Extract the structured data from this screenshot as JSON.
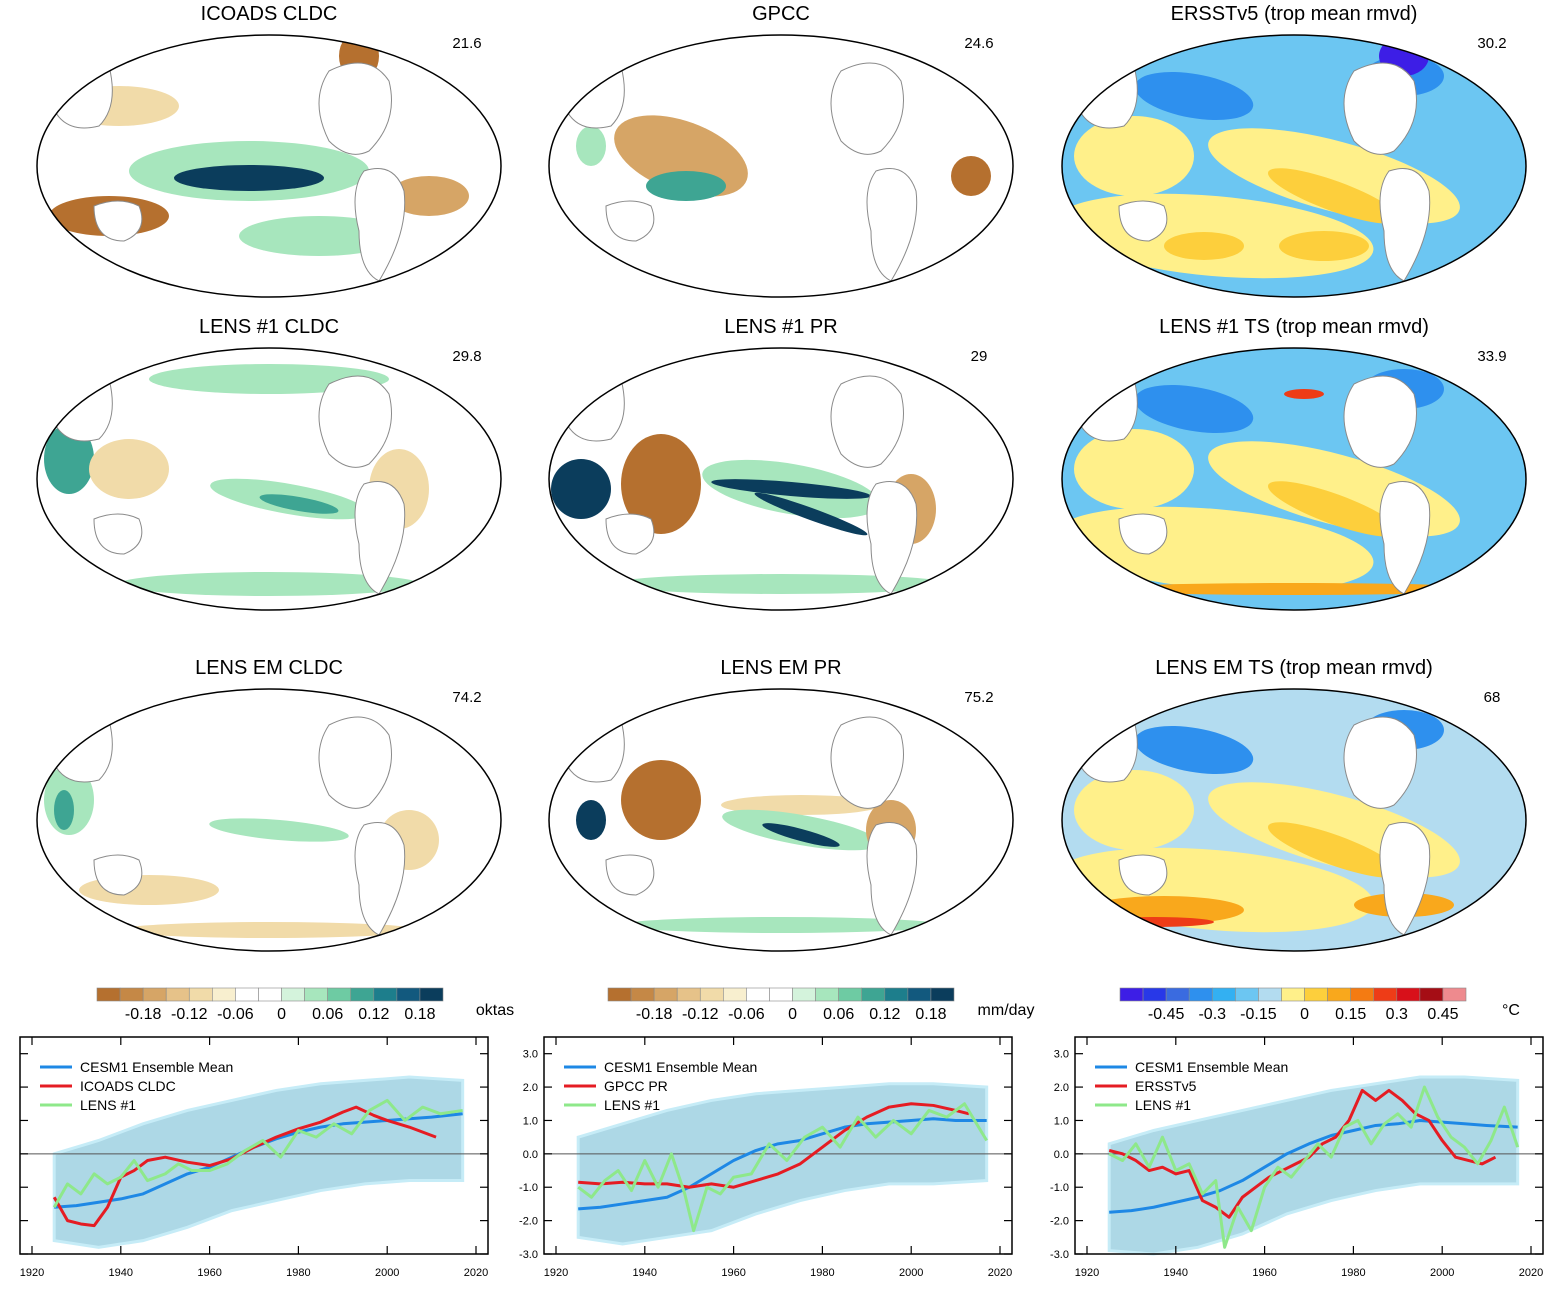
{
  "maps": [
    {
      "title": "ICOADS CLDC",
      "value": "21.6",
      "row": 0,
      "col": 0,
      "pattern": "obs-cld"
    },
    {
      "title": "GPCC",
      "value": "24.6",
      "row": 0,
      "col": 1,
      "pattern": "obs-pr"
    },
    {
      "title": "ERSSTv5 (trop mean rmvd)",
      "value": "30.2",
      "row": 0,
      "col": 2,
      "pattern": "obs-sst"
    },
    {
      "title": "LENS #1 CLDC",
      "value": "29.8",
      "row": 1,
      "col": 0,
      "pattern": "lens-cld"
    },
    {
      "title": "LENS #1 PR",
      "value": "29",
      "row": 1,
      "col": 1,
      "pattern": "lens-pr"
    },
    {
      "title": "LENS #1 TS (trop mean rmvd)",
      "value": "33.9",
      "row": 1,
      "col": 2,
      "pattern": "lens-ts"
    },
    {
      "title": "LENS EM CLDC",
      "value": "74.2",
      "row": 2,
      "col": 0,
      "pattern": "em-cld"
    },
    {
      "title": "LENS EM PR",
      "value": "75.2",
      "row": 2,
      "col": 1,
      "pattern": "em-pr"
    },
    {
      "title": "LENS EM TS (trop mean rmvd)",
      "value": "68",
      "row": 2,
      "col": 2,
      "pattern": "em-ts"
    }
  ],
  "colorbars": [
    {
      "unit": "oktas",
      "labels": [
        "-0.18",
        "-0.12",
        "-0.06",
        "0",
        "0.06",
        "0.12",
        "0.18"
      ],
      "colors": [
        "#b5702f",
        "#c58846",
        "#d6a566",
        "#e6c289",
        "#f1dba9",
        "#f8efcf",
        "#ffffff",
        "#ffffff",
        "#d4f3dc",
        "#a7e6bd",
        "#6ecba3",
        "#3ea593",
        "#1d7e8c",
        "#12597e",
        "#0b3d5c"
      ]
    },
    {
      "unit": "mm/day",
      "labels": [
        "-0.18",
        "-0.12",
        "-0.06",
        "0",
        "0.06",
        "0.12",
        "0.18"
      ],
      "colors": [
        "#b5702f",
        "#c58846",
        "#d6a566",
        "#e6c289",
        "#f1dba9",
        "#f8efcf",
        "#ffffff",
        "#ffffff",
        "#d4f3dc",
        "#a7e6bd",
        "#6ecba3",
        "#3ea593",
        "#1d7e8c",
        "#12597e",
        "#0b3d5c"
      ]
    },
    {
      "unit": "°C",
      "labels": [
        "-0.45",
        "-0.3",
        "-0.15",
        "0",
        "0.15",
        "0.3",
        "0.45"
      ],
      "colors": [
        "#3d1ee6",
        "#2838e8",
        "#3a6be0",
        "#2e90ee",
        "#33b0f2",
        "#6cc6f2",
        "#b3dcf0",
        "#fff08a",
        "#fdcf3c",
        "#f9a81c",
        "#f47b12",
        "#ee3c17",
        "#d8101a",
        "#a50d15",
        "#ee8a8e"
      ]
    }
  ],
  "chart_data": [
    {
      "type": "line",
      "xlim": [
        1920,
        2020
      ],
      "ylim": [
        -3,
        3.5
      ],
      "x_ticks": [
        "1920",
        "1940",
        "1960",
        "1980",
        "2000",
        "2020"
      ],
      "y_ticks": [
        "-3.0",
        "-2.0",
        "-1.0",
        "0.0",
        "1.0",
        "2.0",
        "3.0"
      ],
      "show_y_labels": false,
      "band": {
        "x": [
          1925,
          1935,
          1945,
          1955,
          1965,
          1975,
          1985,
          1995,
          2005,
          2017
        ],
        "lower": [
          -2.6,
          -2.8,
          -2.6,
          -2.2,
          -1.7,
          -1.4,
          -1.1,
          -0.9,
          -0.8,
          -0.8
        ],
        "upper": [
          0.0,
          0.4,
          0.9,
          1.3,
          1.6,
          1.9,
          2.1,
          2.2,
          2.3,
          2.2
        ]
      },
      "series": [
        {
          "name": "CESM1 Ensemble Mean",
          "color": "#1e88e5",
          "x": [
            1925,
            1930,
            1935,
            1940,
            1945,
            1950,
            1955,
            1960,
            1965,
            1970,
            1975,
            1980,
            1985,
            1990,
            1995,
            2000,
            2005,
            2010,
            2017
          ],
          "y": [
            -1.6,
            -1.55,
            -1.45,
            -1.35,
            -1.2,
            -0.9,
            -0.6,
            -0.4,
            -0.1,
            0.2,
            0.45,
            0.65,
            0.8,
            0.9,
            0.95,
            1.0,
            1.05,
            1.1,
            1.2
          ]
        },
        {
          "name": "ICOADS CLDC",
          "color": "#e51c23",
          "x": [
            1925,
            1928,
            1931,
            1934,
            1937,
            1940,
            1943,
            1946,
            1950,
            1955,
            1960,
            1965,
            1970,
            1975,
            1980,
            1985,
            1990,
            1993,
            1997,
            2000,
            2005,
            2011
          ],
          "y": [
            -1.3,
            -2.0,
            -2.1,
            -2.15,
            -1.6,
            -0.7,
            -0.5,
            -0.2,
            -0.1,
            -0.25,
            -0.35,
            -0.15,
            0.2,
            0.5,
            0.75,
            0.95,
            1.25,
            1.4,
            1.15,
            1.0,
            0.8,
            0.5
          ]
        },
        {
          "name": "LENS #1",
          "color": "#8ee88a",
          "x": [
            1925,
            1928,
            1931,
            1934,
            1937,
            1940,
            1943,
            1946,
            1950,
            1953,
            1956,
            1960,
            1964,
            1968,
            1972,
            1976,
            1980,
            1984,
            1988,
            1992,
            1996,
            2000,
            2004,
            2008,
            2012,
            2017
          ],
          "y": [
            -1.6,
            -0.9,
            -1.2,
            -0.6,
            -0.9,
            -0.7,
            -0.2,
            -0.8,
            -0.6,
            -0.3,
            -0.5,
            -0.5,
            -0.3,
            0.1,
            0.4,
            -0.1,
            0.7,
            0.5,
            0.9,
            0.6,
            1.3,
            1.6,
            1.0,
            1.4,
            1.2,
            1.3
          ]
        }
      ]
    },
    {
      "type": "line",
      "xlim": [
        1920,
        2020
      ],
      "ylim": [
        -3,
        3.5
      ],
      "x_ticks": [
        "1920",
        "1940",
        "1960",
        "1980",
        "2000",
        "2020"
      ],
      "y_ticks": [
        "-3.0",
        "-2.0",
        "-1.0",
        "0.0",
        "1.0",
        "2.0",
        "3.0"
      ],
      "show_y_labels": true,
      "band": {
        "x": [
          1925,
          1935,
          1945,
          1955,
          1965,
          1975,
          1985,
          1995,
          2005,
          2017
        ],
        "lower": [
          -2.5,
          -2.7,
          -2.5,
          -2.3,
          -1.8,
          -1.4,
          -1.1,
          -0.9,
          -0.9,
          -0.8
        ],
        "upper": [
          0.5,
          0.9,
          1.3,
          1.6,
          1.8,
          1.9,
          2.0,
          2.1,
          2.1,
          2.0
        ]
      },
      "series": [
        {
          "name": "CESM1 Ensemble Mean",
          "color": "#1e88e5",
          "x": [
            1925,
            1930,
            1935,
            1940,
            1945,
            1950,
            1955,
            1960,
            1965,
            1970,
            1975,
            1980,
            1985,
            1990,
            1995,
            2000,
            2005,
            2010,
            2017
          ],
          "y": [
            -1.65,
            -1.6,
            -1.5,
            -1.4,
            -1.3,
            -1.0,
            -0.6,
            -0.2,
            0.1,
            0.3,
            0.4,
            0.6,
            0.8,
            0.9,
            0.95,
            1.0,
            1.05,
            1.0,
            1.0
          ]
        },
        {
          "name": "GPCC PR",
          "color": "#e51c23",
          "x": [
            1925,
            1930,
            1935,
            1940,
            1945,
            1950,
            1955,
            1960,
            1965,
            1970,
            1975,
            1980,
            1985,
            1990,
            1995,
            2000,
            2005,
            2010,
            2013
          ],
          "y": [
            -0.85,
            -0.9,
            -0.85,
            -0.9,
            -0.9,
            -1.0,
            -0.9,
            -1.0,
            -0.8,
            -0.6,
            -0.3,
            0.2,
            0.7,
            1.1,
            1.4,
            1.5,
            1.45,
            1.3,
            1.2
          ]
        },
        {
          "name": "LENS #1",
          "color": "#8ee88a",
          "x": [
            1925,
            1928,
            1931,
            1934,
            1937,
            1940,
            1943,
            1946,
            1949,
            1951,
            1954,
            1957,
            1960,
            1964,
            1968,
            1972,
            1976,
            1980,
            1984,
            1988,
            1992,
            1996,
            2000,
            2004,
            2008,
            2012,
            2017
          ],
          "y": [
            -1.0,
            -1.3,
            -0.8,
            -0.5,
            -1.1,
            -0.2,
            -1.0,
            0.0,
            -1.2,
            -2.3,
            -1.0,
            -1.2,
            -0.7,
            -0.6,
            0.3,
            -0.2,
            0.5,
            0.8,
            0.2,
            1.1,
            0.5,
            1.0,
            0.6,
            1.3,
            1.1,
            1.5,
            0.4
          ]
        }
      ]
    },
    {
      "type": "line",
      "xlim": [
        1920,
        2020
      ],
      "ylim": [
        -3,
        3.5
      ],
      "x_ticks": [
        "1920",
        "1940",
        "1960",
        "1980",
        "2000",
        "2020"
      ],
      "y_ticks": [
        "-3.0",
        "-2.0",
        "-1.0",
        "0.0",
        "1.0",
        "2.0",
        "3.0"
      ],
      "show_y_labels": true,
      "band": {
        "x": [
          1925,
          1935,
          1945,
          1955,
          1965,
          1975,
          1985,
          1995,
          2005,
          2017
        ],
        "lower": [
          -2.9,
          -3.0,
          -2.8,
          -2.4,
          -1.8,
          -1.4,
          -1.1,
          -0.9,
          -0.9,
          -0.9
        ],
        "upper": [
          0.3,
          0.7,
          1.0,
          1.3,
          1.6,
          1.9,
          2.1,
          2.3,
          2.3,
          2.2
        ]
      },
      "series": [
        {
          "name": "CESM1 Ensemble Mean",
          "color": "#1e88e5",
          "x": [
            1925,
            1930,
            1935,
            1940,
            1945,
            1950,
            1955,
            1960,
            1965,
            1970,
            1975,
            1980,
            1985,
            1990,
            1995,
            2000,
            2005,
            2010,
            2017
          ],
          "y": [
            -1.75,
            -1.7,
            -1.6,
            -1.45,
            -1.3,
            -1.1,
            -0.8,
            -0.4,
            0.0,
            0.3,
            0.55,
            0.7,
            0.85,
            0.9,
            1.0,
            0.95,
            0.9,
            0.85,
            0.8
          ]
        },
        {
          "name": "ERSSTv5",
          "color": "#e51c23",
          "x": [
            1925,
            1928,
            1931,
            1934,
            1937,
            1940,
            1943,
            1946,
            1949,
            1952,
            1955,
            1958,
            1961,
            1964,
            1967,
            1970,
            1973,
            1976,
            1979,
            1982,
            1985,
            1988,
            1991,
            1994,
            1997,
            2000,
            2003,
            2006,
            2009,
            2012
          ],
          "y": [
            0.1,
            0.0,
            -0.2,
            -0.5,
            -0.4,
            -0.6,
            -0.5,
            -1.4,
            -1.6,
            -1.9,
            -1.3,
            -1.0,
            -0.7,
            -0.5,
            -0.3,
            -0.1,
            0.3,
            0.5,
            1.0,
            1.9,
            1.6,
            1.9,
            1.6,
            1.2,
            1.0,
            0.4,
            -0.1,
            -0.2,
            -0.3,
            -0.1
          ]
        },
        {
          "name": "LENS #1",
          "color": "#8ee88a",
          "x": [
            1925,
            1928,
            1931,
            1934,
            1937,
            1940,
            1943,
            1946,
            1949,
            1951,
            1954,
            1957,
            1960,
            1963,
            1966,
            1969,
            1972,
            1975,
            1978,
            1981,
            1984,
            1987,
            1990,
            1993,
            1996,
            1999,
            2002,
            2005,
            2008,
            2011,
            2014,
            2017
          ],
          "y": [
            0.0,
            -0.2,
            0.3,
            -0.4,
            0.5,
            -0.5,
            -0.3,
            -1.2,
            -0.8,
            -2.8,
            -1.6,
            -2.3,
            -1.0,
            -0.4,
            -0.7,
            -0.2,
            0.3,
            -0.1,
            0.8,
            1.0,
            0.3,
            0.9,
            1.2,
            0.8,
            2.0,
            1.1,
            0.5,
            0.2,
            -0.3,
            0.4,
            1.4,
            0.2
          ]
        }
      ]
    }
  ]
}
